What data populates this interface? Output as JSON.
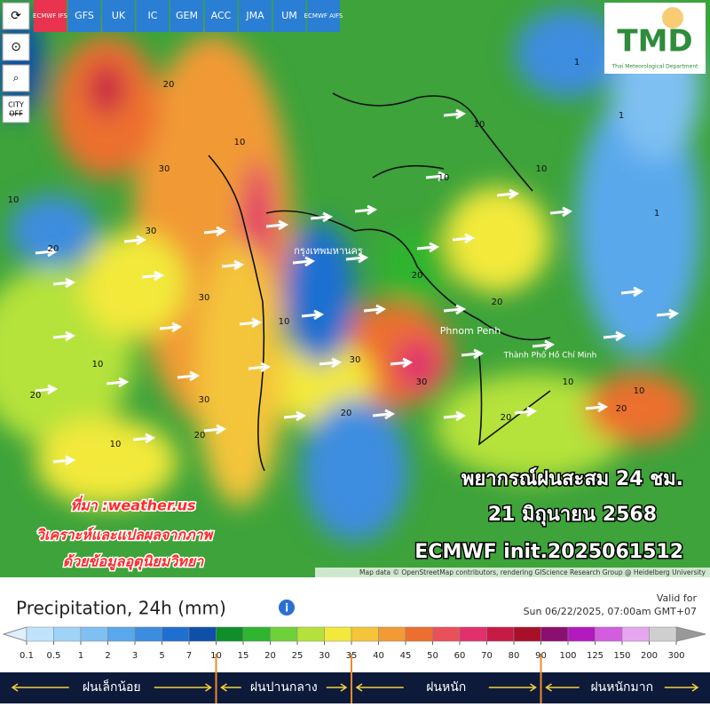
{
  "models": [
    "ECMWF IFS",
    "GFS",
    "UK",
    "IC",
    "GEM",
    "ACC",
    "JMA",
    "UM",
    "ECMWF AIFS"
  ],
  "side_buttons": {
    "city": "CITY",
    "off": "OFF"
  },
  "logo": {
    "title": "TMD",
    "subtitle": "Thai Meteorological Department"
  },
  "map_labels": {
    "cities": [
      "กรุงเทพมหานคร",
      "Phnom Penh",
      "Thành Phố Hồ Chí Minh"
    ],
    "contours": [
      "20",
      "30",
      "10",
      "20",
      "30",
      "10",
      "30",
      "10",
      "20",
      "30",
      "10",
      "20",
      "10",
      "30",
      "20",
      "10",
      "20",
      "10",
      "30",
      "20",
      "10",
      "1",
      "1",
      "1",
      "10",
      "20",
      "10",
      "20"
    ]
  },
  "overlay": {
    "line1": "พยากรณ์ฝนสะสม 24 ชม.",
    "line2": "21 มิถุนายน 2568",
    "line3": "ECMWF init.2025061512"
  },
  "credit": {
    "line1": "ที่มา :weather.us",
    "line2": "วิเคราะห์และแปลผลจากภาพ",
    "line3": "ด้วยข้อมูลอุตุนิยมวิทยา"
  },
  "attribution": "Map data © OpenStreetMap contributors, rendering GIScience Research Group @ Heidelberg University",
  "legend": {
    "title": "Precipitation, 24h (mm)",
    "valid_label": "Valid for",
    "valid_time": "Sun 06/22/2025, 07:00am GMT+07",
    "ticks": [
      0.1,
      0.5,
      1,
      2,
      3,
      5,
      7,
      10,
      15,
      20,
      25,
      30,
      35,
      40,
      45,
      50,
      60,
      70,
      80,
      90,
      100,
      125,
      150,
      200,
      300
    ],
    "colors": [
      "#bfe3fb",
      "#9fd3f7",
      "#7fc0f2",
      "#5aa8ec",
      "#3c8de0",
      "#1f6fd0",
      "#0f4fa8",
      "#0e8f2a",
      "#2fb52f",
      "#6fd13a",
      "#b5e23a",
      "#f2e93a",
      "#f4c43a",
      "#f19a36",
      "#ec6f2f",
      "#e8505a",
      "#e1306c",
      "#c71a45",
      "#a8102a",
      "#8a0f70",
      "#b21ac0",
      "#d35de0",
      "#e6a6ef",
      "#cfcfcf"
    ],
    "ranges": [
      "ฝนเล็กน้อย",
      "ฝนปานกลาง",
      "ฝนหนัก",
      "ฝนหนักมาก"
    ],
    "range_breaks": [
      10,
      35,
      90
    ]
  }
}
